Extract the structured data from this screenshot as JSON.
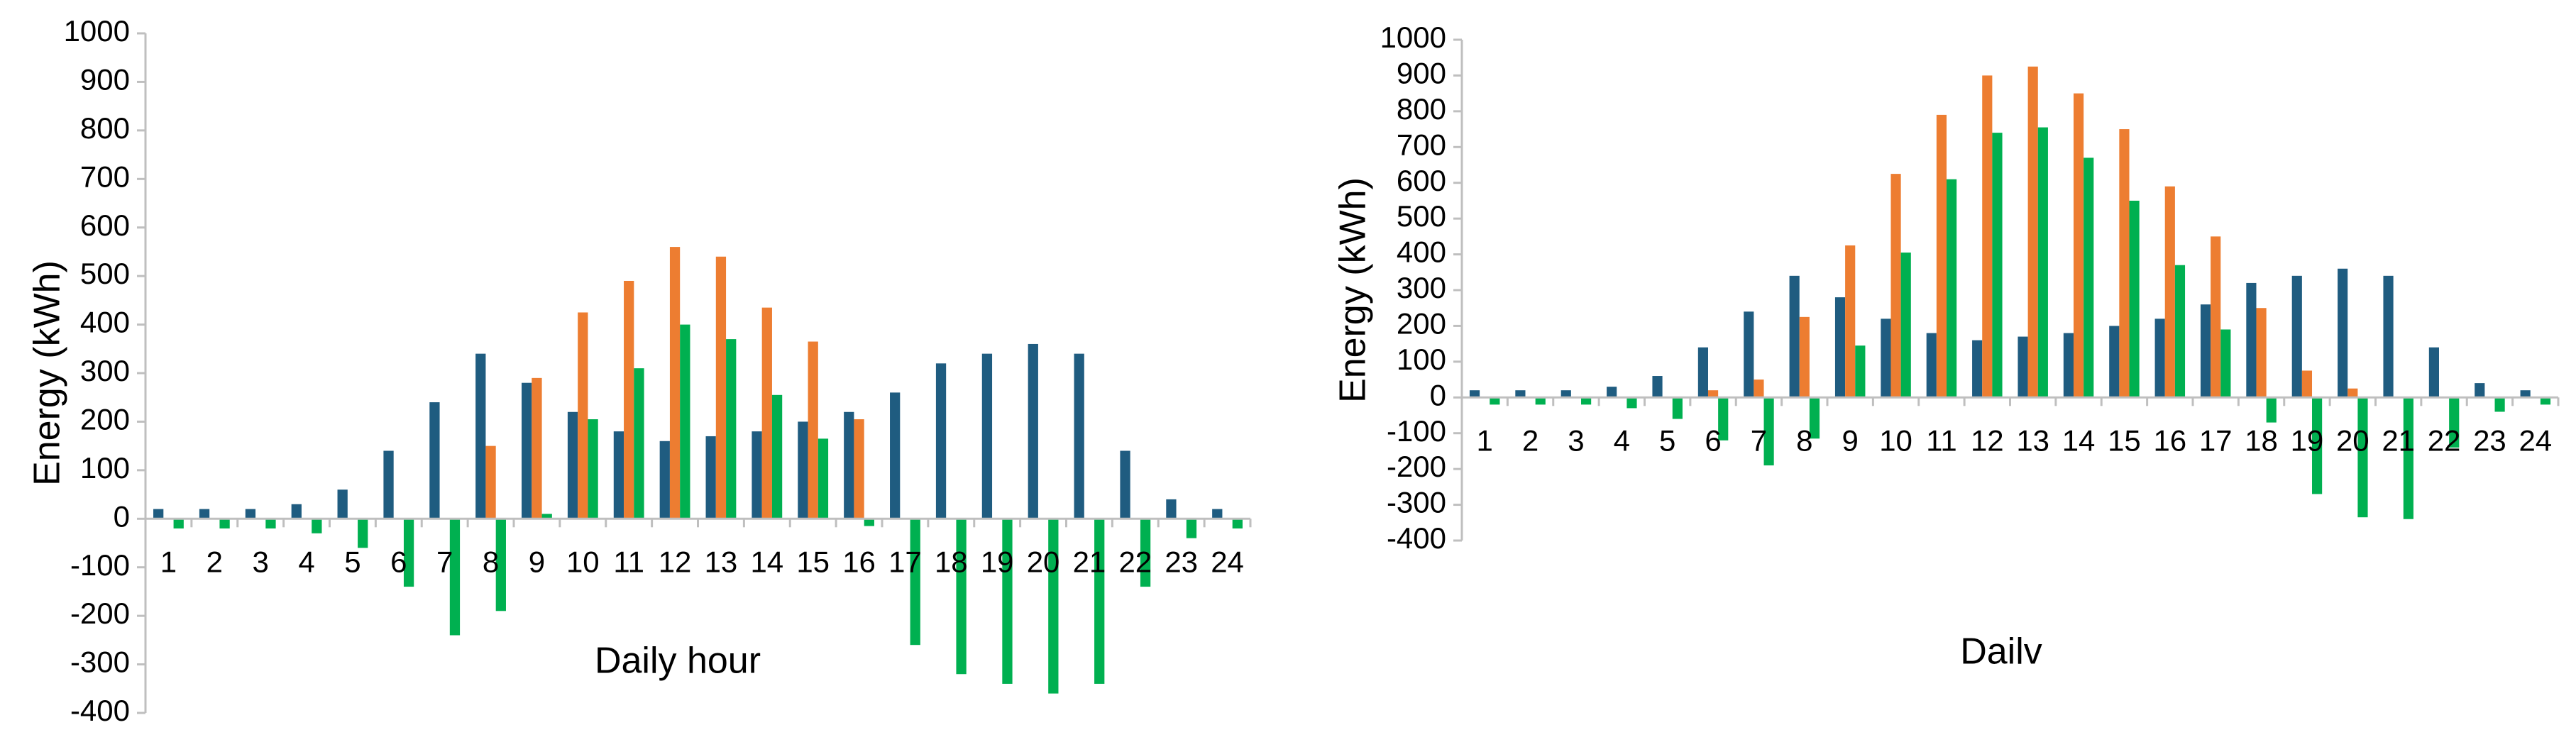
{
  "chart_data": [
    {
      "type": "bar",
      "x_label": "Daily hour",
      "y_label": "Energy (kWh)",
      "categories": [
        "1",
        "2",
        "3",
        "4",
        "5",
        "6",
        "7",
        "8",
        "9",
        "10",
        "11",
        "12",
        "13",
        "14",
        "15",
        "16",
        "17",
        "18",
        "19",
        "20",
        "21",
        "22",
        "23",
        "24"
      ],
      "ylim": [
        -400,
        1000
      ],
      "yticks": [
        -400,
        -300,
        -200,
        -100,
        0,
        100,
        200,
        300,
        400,
        500,
        600,
        700,
        800,
        900,
        1000
      ],
      "series": [
        {
          "color": "#1f5c80",
          "values": [
            20,
            20,
            20,
            30,
            60,
            140,
            240,
            340,
            280,
            220,
            180,
            160,
            170,
            180,
            200,
            220,
            260,
            320,
            340,
            360,
            340,
            140,
            40,
            20
          ]
        },
        {
          "color": "#ed7d31",
          "values": [
            0,
            0,
            0,
            0,
            0,
            0,
            0,
            150,
            290,
            425,
            490,
            560,
            540,
            435,
            365,
            205,
            0,
            0,
            0,
            0,
            0,
            0,
            0,
            0
          ]
        },
        {
          "color": "#00b050",
          "values": [
            -20,
            -20,
            -20,
            -30,
            -60,
            -140,
            -240,
            -190,
            10,
            205,
            310,
            400,
            370,
            255,
            165,
            -15,
            -260,
            -320,
            -340,
            -360,
            -340,
            -140,
            -40,
            -20
          ]
        }
      ]
    },
    {
      "type": "bar",
      "x_label": "Dailv",
      "y_label": "Energy (kWh)",
      "categories": [
        "1",
        "2",
        "3",
        "4",
        "5",
        "6",
        "7",
        "8",
        "9",
        "10",
        "11",
        "12",
        "13",
        "14",
        "15",
        "16",
        "17",
        "18",
        "19",
        "20",
        "21",
        "22",
        "23",
        "24"
      ],
      "ylim": [
        -400,
        1000
      ],
      "yticks": [
        -400,
        -300,
        -200,
        -100,
        0,
        100,
        200,
        300,
        400,
        500,
        600,
        700,
        800,
        900,
        1000
      ],
      "series": [
        {
          "color": "#1f5c80",
          "values": [
            20,
            20,
            20,
            30,
            60,
            140,
            240,
            340,
            280,
            220,
            180,
            160,
            170,
            180,
            200,
            220,
            260,
            320,
            340,
            360,
            340,
            140,
            40,
            20
          ]
        },
        {
          "color": "#ed7d31",
          "values": [
            0,
            0,
            0,
            0,
            0,
            20,
            50,
            225,
            425,
            625,
            790,
            900,
            925,
            850,
            750,
            590,
            450,
            250,
            75,
            25,
            0,
            0,
            0,
            0
          ]
        },
        {
          "color": "#00b050",
          "values": [
            -20,
            -20,
            -20,
            -30,
            -60,
            -120,
            -190,
            -115,
            145,
            405,
            610,
            740,
            755,
            670,
            550,
            370,
            190,
            -70,
            -270,
            -335,
            -340,
            -140,
            -40,
            -20
          ]
        }
      ]
    }
  ]
}
